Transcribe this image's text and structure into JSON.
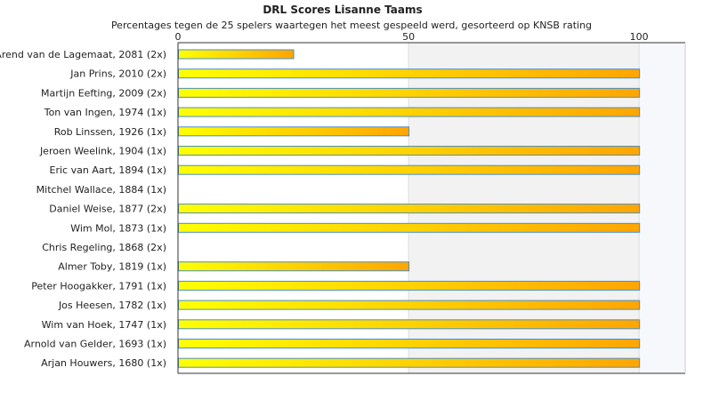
{
  "chart_data": {
    "type": "bar",
    "orientation": "horizontal",
    "title": "DRL Scores Lisanne Taams",
    "subtitle": "Percentages tegen de 25 spelers waartegen het meest gespeeld werd, gesorteerd op KNSB rating",
    "xlabel": "",
    "ylabel": "",
    "xlim": [
      0,
      110
    ],
    "x_ticks": [
      "0",
      "50",
      "100"
    ],
    "grid": true,
    "categories": [
      "Arend van de Lagemaat, 2081 (2x)",
      "Jan Prins, 2010 (2x)",
      "Martijn Eefting, 2009 (2x)",
      "Ton van Ingen, 1974 (1x)",
      "Rob Linssen, 1926 (1x)",
      "Jeroen Weelink, 1904 (1x)",
      "Eric van Aart, 1894 (1x)",
      "Mitchel Wallace, 1884 (1x)",
      "Daniel Weise, 1877 (2x)",
      "Wim Mol, 1873 (1x)",
      "Chris Regeling, 1868 (2x)",
      "Almer Toby, 1819 (1x)",
      "Peter Hoogakker, 1791 (1x)",
      "Jos Heesen, 1782 (1x)",
      "Wim van Hoek, 1747 (1x)",
      "Arnold van Gelder, 1693 (1x)",
      "Arjan Houwers, 1680 (1x)"
    ],
    "values": [
      25,
      100,
      100,
      100,
      50,
      100,
      100,
      0,
      100,
      100,
      0,
      50,
      100,
      100,
      100,
      100,
      100
    ],
    "colors": {
      "bar_start": "#ffff00",
      "bar_end": "#ffa500",
      "bar_border": "#4a90c8",
      "band_light": "#f2f2f2",
      "band_lighter": "#f7f8fc",
      "axis": "#333333",
      "grid": "#dddddd"
    }
  }
}
